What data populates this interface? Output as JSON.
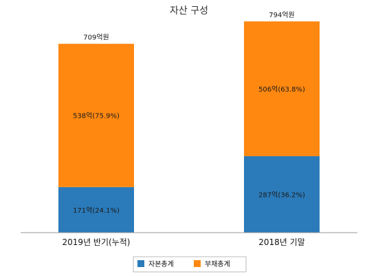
{
  "colors": {
    "capital": "#2b7bba",
    "liability": "#ff8811",
    "axis": "#999999",
    "legend_border": "#bbbbbb"
  },
  "chart_data": {
    "type": "bar",
    "stacked": true,
    "title": "자산 구성",
    "categories": [
      "2019년 반기(누적)",
      "2018년 기말"
    ],
    "series": [
      {
        "name": "자본총계",
        "values": [
          171,
          287
        ],
        "labels": [
          "171억(24.1%)",
          "287억(36.2%)"
        ]
      },
      {
        "name": "부채총계",
        "values": [
          538,
          506
        ],
        "labels": [
          "538억(75.9%)",
          "506억(63.8%)"
        ]
      }
    ],
    "totals": [
      709,
      794
    ],
    "total_labels": [
      "709억원",
      "794억원"
    ],
    "ylim": [
      0,
      900
    ],
    "grid": false,
    "legend_position": "bottom-center"
  }
}
